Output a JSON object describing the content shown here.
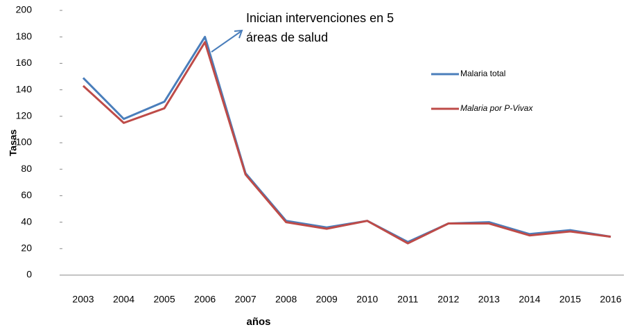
{
  "chart_data": {
    "type": "line",
    "x_label": "años",
    "y_label": "Tasas",
    "annotation": [
      "Inician intervenciones en 5",
      "áreas de salud"
    ],
    "categories": [
      "2003",
      "2004",
      "2005",
      "2006",
      "2007",
      "2008",
      "2009",
      "2010",
      "2011",
      "2012",
      "2013",
      "2014",
      "2015",
      "2016"
    ],
    "series": [
      {
        "name": "Malaria total",
        "color": "#4a7ebb",
        "values": [
          149,
          118,
          131,
          180,
          77,
          41,
          36,
          41,
          25,
          39,
          40,
          31,
          34,
          29
        ]
      },
      {
        "name": "Malaria por P-Vivax",
        "color": "#be4b48",
        "values": [
          143,
          115,
          126,
          176,
          76,
          40,
          35,
          41,
          24,
          39,
          39,
          30,
          33,
          29
        ]
      }
    ],
    "ylim": [
      0,
      200
    ],
    "yticks": [
      0,
      20,
      40,
      60,
      80,
      100,
      120,
      140,
      160,
      180,
      200
    ],
    "grid": false
  }
}
